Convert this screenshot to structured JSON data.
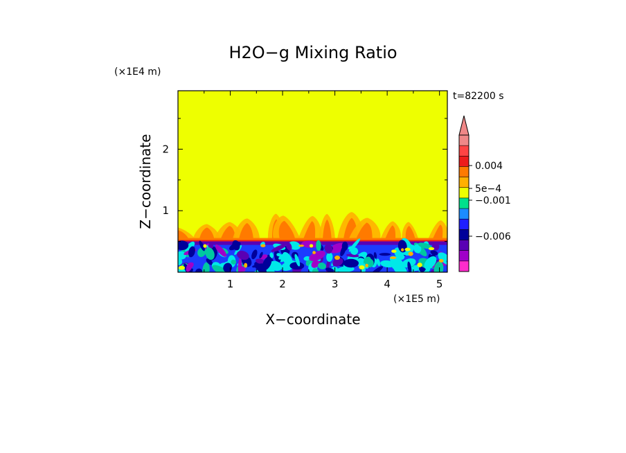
{
  "chart_data": {
    "type": "heatmap",
    "title": "H2O−g Mixing Ratio",
    "xlabel": "X−coordinate",
    "ylabel": "Z−coordinate",
    "x_unit": "(×1E5 m)",
    "y_unit": "(×1E4 m)",
    "time_label": "t=82200 s",
    "xlim": [
      0,
      5.15
    ],
    "ylim": [
      0,
      2.95
    ],
    "x_ticks": [
      "1",
      "2",
      "3",
      "4",
      "5"
    ],
    "y_ticks": [
      "1",
      "2"
    ],
    "background_value_color": "#eeff00",
    "boundary_layer_top": 0.5,
    "plumes_top": 1.0,
    "colorbar": {
      "levels_labels": [
        "0.004",
        "5e−4",
        "−0.001",
        "−0.006"
      ],
      "colors_top_to_bottom": [
        "#f08888",
        "#ff4444",
        "#ee1c1c",
        "#ff7a00",
        "#ffb000",
        "#eeff00",
        "#00e08c",
        "#1c8cff",
        "#2020ff",
        "#00009a",
        "#5a00b4",
        "#a000c8",
        "#ff2ccc"
      ],
      "extend_top_triangle": true
    },
    "palette": {
      "yellow": "#eeff00",
      "orange_light": "#ffb000",
      "orange": "#ff7a00",
      "red": "#ee1c1c",
      "cyan": "#00e8e8",
      "blue": "#1c3cff",
      "navy": "#00009a",
      "purple": "#5a00b4",
      "magenta": "#a000c8"
    }
  }
}
